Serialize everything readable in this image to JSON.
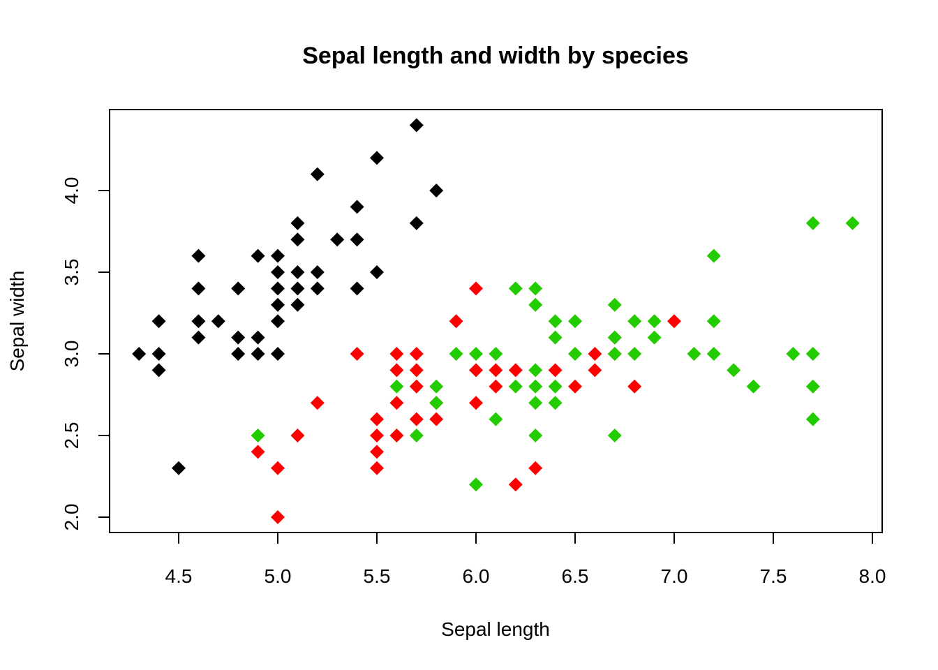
{
  "chart_data": {
    "type": "scatter",
    "title": "Sepal length and width by species",
    "xlabel": "Sepal length",
    "ylabel": "Sepal width",
    "xlim": [
      4.3,
      7.9
    ],
    "ylim": [
      2.0,
      4.4
    ],
    "x_ticks": [
      "4.5",
      "5.0",
      "5.5",
      "6.0",
      "6.5",
      "7.0",
      "7.5",
      "8.0"
    ],
    "y_ticks": [
      "2.0",
      "2.5",
      "3.0",
      "3.5",
      "4.0"
    ],
    "grid": false,
    "legend": "none",
    "marker": "diamond",
    "series": [
      {
        "color": "#000000",
        "points": [
          [
            4.3,
            3.0
          ],
          [
            4.4,
            2.9
          ],
          [
            4.4,
            3.0
          ],
          [
            4.4,
            3.2
          ],
          [
            4.5,
            2.3
          ],
          [
            4.6,
            3.1
          ],
          [
            4.6,
            3.2
          ],
          [
            4.6,
            3.4
          ],
          [
            4.6,
            3.6
          ],
          [
            4.7,
            3.2
          ],
          [
            4.8,
            3.0
          ],
          [
            4.8,
            3.1
          ],
          [
            4.8,
            3.4
          ],
          [
            4.9,
            3.0
          ],
          [
            4.9,
            3.1
          ],
          [
            4.9,
            3.6
          ],
          [
            5.0,
            3.0
          ],
          [
            5.0,
            3.2
          ],
          [
            5.0,
            3.3
          ],
          [
            5.0,
            3.4
          ],
          [
            5.0,
            3.5
          ],
          [
            5.0,
            3.6
          ],
          [
            5.1,
            3.3
          ],
          [
            5.1,
            3.4
          ],
          [
            5.1,
            3.5
          ],
          [
            5.1,
            3.7
          ],
          [
            5.1,
            3.8
          ],
          [
            5.2,
            3.4
          ],
          [
            5.2,
            3.5
          ],
          [
            5.2,
            4.1
          ],
          [
            5.3,
            3.7
          ],
          [
            5.4,
            3.4
          ],
          [
            5.4,
            3.7
          ],
          [
            5.4,
            3.9
          ],
          [
            5.5,
            3.5
          ],
          [
            5.5,
            4.2
          ],
          [
            5.7,
            3.8
          ],
          [
            5.7,
            4.4
          ],
          [
            5.8,
            4.0
          ]
        ]
      },
      {
        "color": "#ff0000",
        "points": [
          [
            4.9,
            2.4
          ],
          [
            5.0,
            2.0
          ],
          [
            5.0,
            2.3
          ],
          [
            5.1,
            2.5
          ],
          [
            5.2,
            2.7
          ],
          [
            5.4,
            3.0
          ],
          [
            5.5,
            2.3
          ],
          [
            5.5,
            2.4
          ],
          [
            5.5,
            2.5
          ],
          [
            5.5,
            2.6
          ],
          [
            5.6,
            2.5
          ],
          [
            5.6,
            2.7
          ],
          [
            5.6,
            2.9
          ],
          [
            5.6,
            3.0
          ],
          [
            5.7,
            2.6
          ],
          [
            5.7,
            2.8
          ],
          [
            5.7,
            2.9
          ],
          [
            5.7,
            3.0
          ],
          [
            5.8,
            2.6
          ],
          [
            5.8,
            2.7
          ],
          [
            5.9,
            3.2
          ],
          [
            6.0,
            2.7
          ],
          [
            6.0,
            2.9
          ],
          [
            6.0,
            3.4
          ],
          [
            6.1,
            2.8
          ],
          [
            6.1,
            2.9
          ],
          [
            6.2,
            2.2
          ],
          [
            6.2,
            2.9
          ],
          [
            6.3,
            2.3
          ],
          [
            6.4,
            2.9
          ],
          [
            6.5,
            2.8
          ],
          [
            6.6,
            2.9
          ],
          [
            6.6,
            3.0
          ],
          [
            6.7,
            3.0
          ],
          [
            6.7,
            3.1
          ],
          [
            6.8,
            2.8
          ],
          [
            7.0,
            3.2
          ]
        ]
      },
      {
        "color": "#22cc00",
        "points": [
          [
            4.9,
            2.5
          ],
          [
            5.6,
            2.8
          ],
          [
            5.7,
            2.5
          ],
          [
            5.8,
            2.7
          ],
          [
            5.8,
            2.8
          ],
          [
            5.9,
            3.0
          ],
          [
            6.0,
            2.2
          ],
          [
            6.0,
            3.0
          ],
          [
            6.1,
            2.6
          ],
          [
            6.1,
            3.0
          ],
          [
            6.2,
            2.8
          ],
          [
            6.2,
            3.4
          ],
          [
            6.3,
            2.5
          ],
          [
            6.3,
            2.7
          ],
          [
            6.3,
            2.8
          ],
          [
            6.3,
            2.9
          ],
          [
            6.3,
            3.3
          ],
          [
            6.3,
            3.4
          ],
          [
            6.4,
            2.7
          ],
          [
            6.4,
            2.8
          ],
          [
            6.4,
            3.1
          ],
          [
            6.4,
            3.2
          ],
          [
            6.5,
            3.0
          ],
          [
            6.5,
            3.2
          ],
          [
            6.7,
            2.5
          ],
          [
            6.7,
            3.0
          ],
          [
            6.7,
            3.1
          ],
          [
            6.7,
            3.3
          ],
          [
            6.8,
            3.0
          ],
          [
            6.8,
            3.2
          ],
          [
            6.9,
            3.1
          ],
          [
            6.9,
            3.2
          ],
          [
            7.1,
            3.0
          ],
          [
            7.2,
            3.0
          ],
          [
            7.2,
            3.2
          ],
          [
            7.2,
            3.6
          ],
          [
            7.3,
            2.9
          ],
          [
            7.4,
            2.8
          ],
          [
            7.6,
            3.0
          ],
          [
            7.7,
            2.6
          ],
          [
            7.7,
            2.8
          ],
          [
            7.7,
            3.0
          ],
          [
            7.7,
            3.8
          ],
          [
            7.9,
            3.8
          ]
        ]
      }
    ]
  }
}
